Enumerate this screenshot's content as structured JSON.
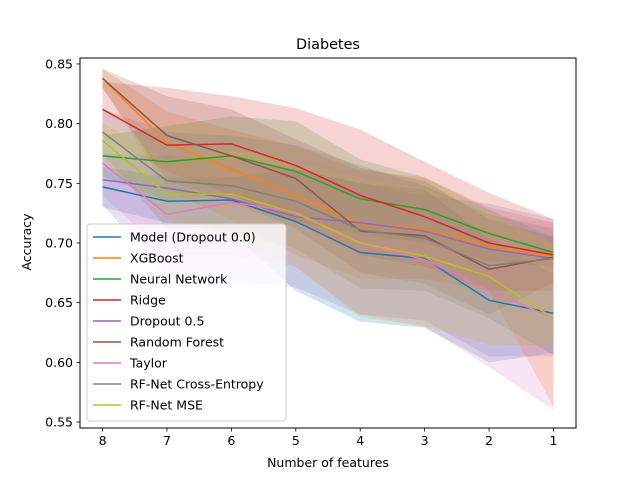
{
  "chart_data": {
    "type": "line",
    "title": "Diabetes",
    "xlabel": "Number of features",
    "ylabel": "Accuracy",
    "x": [
      8,
      7,
      6,
      5,
      4,
      3,
      2,
      1
    ],
    "x_axis_reversed": true,
    "xlim": [
      8.35,
      0.65
    ],
    "ylim": [
      0.545,
      0.855
    ],
    "yticks": [
      "0.55",
      "0.60",
      "0.65",
      "0.70",
      "0.75",
      "0.80",
      "0.85"
    ],
    "xticks": [
      "8",
      "7",
      "6",
      "5",
      "4",
      "3",
      "2",
      "1"
    ],
    "grid": false,
    "legend_position": "lower-left",
    "series": [
      {
        "name": "Model (Dropout 0.0)",
        "color": "#1f77b4",
        "values": [
          0.747,
          0.735,
          0.736,
          0.718,
          0.692,
          0.687,
          0.652,
          0.641
        ],
        "lower": [
          0.73,
          0.717,
          0.709,
          0.66,
          0.634,
          0.629,
          0.6,
          0.608
        ],
        "upper": [
          0.764,
          0.755,
          0.755,
          0.762,
          0.75,
          0.745,
          0.704,
          0.674
        ]
      },
      {
        "name": "XGBoost",
        "color": "#ff7f0e",
        "values": [
          0.838,
          0.784,
          0.762,
          0.74,
          0.716,
          0.712,
          0.697,
          0.689
        ],
        "lower": [
          0.83,
          0.745,
          0.719,
          0.69,
          0.67,
          0.67,
          0.66,
          0.563
        ],
        "upper": [
          0.846,
          0.81,
          0.795,
          0.781,
          0.761,
          0.755,
          0.73,
          0.717
        ]
      },
      {
        "name": "Neural Network",
        "color": "#2ca02c",
        "values": [
          0.773,
          0.768,
          0.773,
          0.76,
          0.737,
          0.728,
          0.708,
          0.692
        ],
        "lower": [
          0.756,
          0.735,
          0.74,
          0.718,
          0.707,
          0.7,
          0.685,
          0.68
        ],
        "upper": [
          0.79,
          0.798,
          0.806,
          0.802,
          0.77,
          0.755,
          0.728,
          0.705
        ]
      },
      {
        "name": "Ridge",
        "color": "#d62728",
        "values": [
          0.812,
          0.782,
          0.783,
          0.765,
          0.74,
          0.722,
          0.7,
          0.69
        ],
        "lower": [
          0.79,
          0.76,
          0.74,
          0.718,
          0.69,
          0.68,
          0.66,
          0.66
        ],
        "upper": [
          0.835,
          0.83,
          0.823,
          0.813,
          0.795,
          0.768,
          0.742,
          0.72
        ]
      },
      {
        "name": "Dropout 0.5",
        "color": "#9467bd",
        "values": [
          0.753,
          0.746,
          0.737,
          0.722,
          0.717,
          0.71,
          0.695,
          0.687
        ],
        "lower": [
          0.732,
          0.672,
          0.668,
          0.663,
          0.64,
          0.635,
          0.605,
          0.605
        ],
        "upper": [
          0.775,
          0.773,
          0.77,
          0.762,
          0.75,
          0.74,
          0.733,
          0.72
        ]
      },
      {
        "name": "Random Forest",
        "color": "#8c564b",
        "values": [
          0.838,
          0.79,
          0.773,
          0.754,
          0.71,
          0.706,
          0.678,
          0.688
        ],
        "lower": [
          0.83,
          0.752,
          0.735,
          0.712,
          0.675,
          0.666,
          0.64,
          0.667
        ],
        "upper": [
          0.846,
          0.823,
          0.812,
          0.787,
          0.763,
          0.752,
          0.72,
          0.705
        ]
      },
      {
        "name": "Taylor",
        "color": "#e377c2",
        "values": [
          0.767,
          0.724,
          0.734,
          0.726,
          0.7,
          0.686,
          0.66,
          0.637
        ],
        "lower": [
          0.74,
          0.69,
          0.69,
          0.68,
          0.64,
          0.63,
          0.596,
          0.56
        ],
        "upper": [
          0.79,
          0.76,
          0.77,
          0.77,
          0.758,
          0.743,
          0.722,
          0.717
        ]
      },
      {
        "name": "RF-Net Cross-Entropy",
        "color": "#7f7f7f",
        "values": [
          0.793,
          0.752,
          0.748,
          0.735,
          0.711,
          0.704,
          0.681,
          0.687
        ],
        "lower": [
          0.775,
          0.712,
          0.71,
          0.695,
          0.662,
          0.66,
          0.637,
          0.606
        ],
        "upper": [
          0.812,
          0.793,
          0.79,
          0.782,
          0.765,
          0.748,
          0.724,
          0.712
        ]
      },
      {
        "name": "RF-Net MSE",
        "color": "#bcbd22",
        "values": [
          0.786,
          0.741,
          0.741,
          0.725,
          0.7,
          0.689,
          0.672,
          0.637
        ],
        "lower": [
          0.77,
          0.72,
          0.706,
          0.68,
          0.638,
          0.63,
          0.615,
          0.614
        ],
        "upper": [
          0.801,
          0.77,
          0.778,
          0.768,
          0.755,
          0.745,
          0.724,
          0.7
        ]
      }
    ]
  }
}
